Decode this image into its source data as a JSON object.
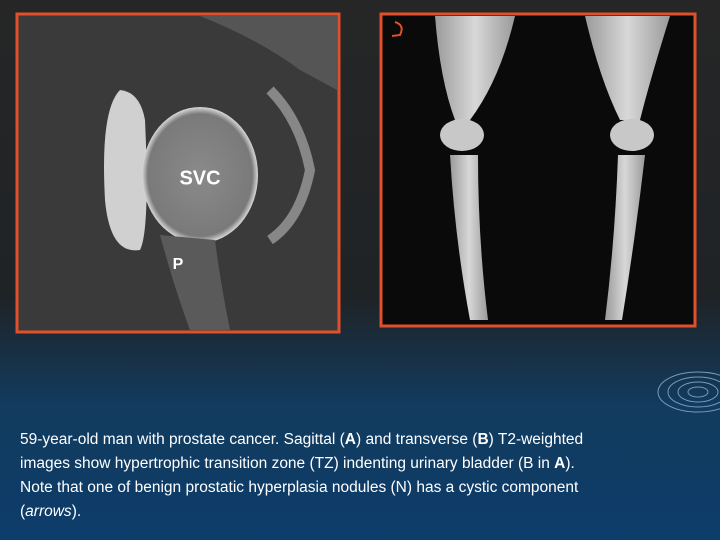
{
  "image_a": {
    "labels": [
      "SVC",
      "P"
    ]
  },
  "caption": {
    "segments": [
      "59-year-old man with prostate cancer. Sagittal (",
      "A",
      ") and transverse (",
      "B",
      ") T2-weighted",
      "images show hypertrophic transition zone (TZ) indenting urinary bladder (B in ",
      "A",
      ").",
      "Note that one of benign prostatic hyperplasia nodules (N) has a cystic component",
      "(",
      "arrows",
      ")."
    ]
  }
}
